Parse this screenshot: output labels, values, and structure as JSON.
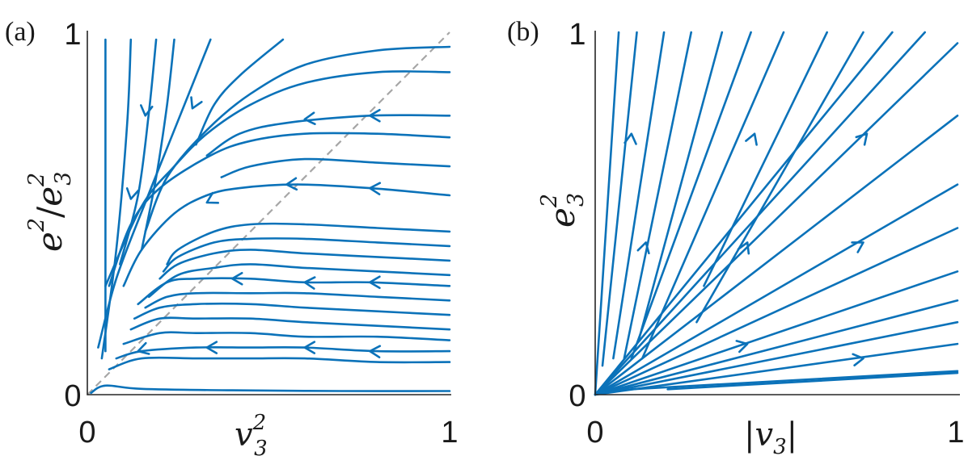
{
  "chart_data": [
    {
      "type": "line",
      "panel_label": "(a)",
      "xlabel_base": "v",
      "xlabel_sub": "3",
      "xlabel_sup": "2",
      "ylabel_num_base": "e",
      "ylabel_num_sup": "2",
      "ylabel_sep": "/",
      "ylabel_den_base": "e",
      "ylabel_den_sub": "3",
      "ylabel_den_sup": "2",
      "xlim": [
        0,
        1
      ],
      "ylim": [
        0,
        1
      ],
      "xticks": [
        "0",
        "1"
      ],
      "yticks": [
        "0",
        "1"
      ],
      "diagonal": {
        "style": "dashed",
        "color": "#a6a6a6",
        "x": [
          0,
          1
        ],
        "y": [
          0,
          1
        ]
      },
      "series": [
        {
          "x": [
            0.05,
            0.05,
            0.05
          ],
          "y": [
            0.98,
            0.55,
            0.12
          ]
        },
        {
          "x": [
            0.12,
            0.11,
            0.08,
            0.04
          ],
          "y": [
            0.98,
            0.75,
            0.4,
            0.1
          ]
        },
        {
          "x": [
            0.19,
            0.17,
            0.14,
            0.09
          ],
          "y": [
            0.98,
            0.78,
            0.55,
            0.36
          ],
          "arrows": [
            {
              "x": 0.16,
              "y": 0.77
            }
          ]
        },
        {
          "x": [
            0.24,
            0.22,
            0.19,
            0.15
          ],
          "y": [
            0.98,
            0.8,
            0.6,
            0.4
          ],
          "arrows": [
            {
              "x": 0.12,
              "y": 0.54
            }
          ]
        },
        {
          "x": [
            0.34,
            0.3,
            0.24,
            0.16,
            0.08,
            0.03
          ],
          "y": [
            0.98,
            0.88,
            0.73,
            0.53,
            0.32,
            0.13
          ]
        },
        {
          "x": [
            0.54,
            0.42,
            0.35,
            0.3
          ],
          "y": [
            0.98,
            0.88,
            0.8,
            0.69
          ],
          "arrows": [
            {
              "x": 0.29,
              "y": 0.79
            }
          ]
        },
        {
          "x": [
            1.0,
            0.8,
            0.6,
            0.45,
            0.33,
            0.22,
            0.16
          ],
          "y": [
            0.96,
            0.95,
            0.91,
            0.83,
            0.73,
            0.6,
            0.45
          ]
        },
        {
          "x": [
            1.0,
            0.8,
            0.6,
            0.45,
            0.33,
            0.24,
            0.15,
            0.05
          ],
          "y": [
            0.89,
            0.89,
            0.86,
            0.8,
            0.72,
            0.63,
            0.52,
            0.3
          ]
        },
        {
          "x": [
            1.0,
            0.78,
            0.55,
            0.42,
            0.33
          ],
          "y": [
            0.77,
            0.77,
            0.75,
            0.72,
            0.66
          ],
          "arrows": [
            {
              "x": 0.78,
              "y": 0.77
            },
            {
              "x": 0.6,
              "y": 0.76
            }
          ]
        },
        {
          "x": [
            1.0,
            0.8,
            0.6,
            0.45,
            0.34,
            0.2,
            0.12,
            0.06
          ],
          "y": [
            0.71,
            0.72,
            0.72,
            0.7,
            0.66,
            0.57,
            0.47,
            0.3
          ]
        },
        {
          "x": [
            1.0,
            0.8,
            0.6,
            0.45,
            0.37
          ],
          "y": [
            0.63,
            0.64,
            0.65,
            0.63,
            0.6
          ]
        },
        {
          "x": [
            1.0,
            0.78,
            0.58,
            0.42,
            0.33,
            0.24,
            0.15,
            0.1
          ],
          "y": [
            0.55,
            0.57,
            0.58,
            0.57,
            0.55,
            0.5,
            0.4,
            0.3
          ],
          "arrows": [
            {
              "x": 0.78,
              "y": 0.57
            },
            {
              "x": 0.55,
              "y": 0.58
            },
            {
              "x": 0.33,
              "y": 0.53
            }
          ]
        },
        {
          "x": [
            1.0,
            0.8,
            0.6,
            0.45,
            0.35,
            0.25,
            0.22
          ],
          "y": [
            0.45,
            0.46,
            0.47,
            0.47,
            0.45,
            0.4,
            0.36
          ]
        },
        {
          "x": [
            1.0,
            0.8,
            0.6,
            0.45,
            0.35,
            0.25,
            0.21
          ],
          "y": [
            0.41,
            0.42,
            0.43,
            0.43,
            0.42,
            0.38,
            0.34
          ]
        },
        {
          "x": [
            1.0,
            0.8,
            0.6,
            0.45,
            0.35,
            0.25,
            0.2
          ],
          "y": [
            0.37,
            0.38,
            0.39,
            0.4,
            0.39,
            0.36,
            0.32
          ]
        },
        {
          "x": [
            1.0,
            0.8,
            0.6,
            0.45,
            0.35,
            0.25,
            0.17
          ],
          "y": [
            0.33,
            0.34,
            0.35,
            0.36,
            0.35,
            0.33,
            0.27
          ]
        },
        {
          "x": [
            1.0,
            0.78,
            0.6,
            0.45,
            0.3,
            0.22,
            0.14
          ],
          "y": [
            0.3,
            0.31,
            0.31,
            0.32,
            0.32,
            0.31,
            0.25
          ],
          "arrows": [
            {
              "x": 0.78,
              "y": 0.31
            },
            {
              "x": 0.6,
              "y": 0.31
            },
            {
              "x": 0.4,
              "y": 0.32
            }
          ]
        },
        {
          "x": [
            1.0,
            0.8,
            0.6,
            0.45,
            0.3,
            0.22,
            0.16
          ],
          "y": [
            0.26,
            0.27,
            0.28,
            0.28,
            0.28,
            0.27,
            0.24
          ]
        },
        {
          "x": [
            1.0,
            0.8,
            0.6,
            0.45,
            0.3,
            0.2,
            0.13
          ],
          "y": [
            0.22,
            0.23,
            0.24,
            0.25,
            0.25,
            0.24,
            0.21
          ]
        },
        {
          "x": [
            1.0,
            0.8,
            0.6,
            0.45,
            0.3,
            0.2,
            0.12
          ],
          "y": [
            0.18,
            0.19,
            0.2,
            0.21,
            0.21,
            0.21,
            0.18
          ]
        },
        {
          "x": [
            1.0,
            0.8,
            0.6,
            0.45,
            0.3,
            0.2,
            0.1
          ],
          "y": [
            0.15,
            0.16,
            0.16,
            0.17,
            0.17,
            0.17,
            0.14
          ]
        },
        {
          "x": [
            1.0,
            0.8,
            0.6,
            0.45,
            0.3,
            0.15,
            0.08
          ],
          "y": [
            0.12,
            0.12,
            0.13,
            0.13,
            0.13,
            0.12,
            0.1
          ],
          "arrows": [
            {
              "x": 0.78,
              "y": 0.12
            },
            {
              "x": 0.6,
              "y": 0.13
            },
            {
              "x": 0.33,
              "y": 0.13
            },
            {
              "x": 0.14,
              "y": 0.12
            }
          ]
        },
        {
          "x": [
            1.0,
            0.8,
            0.6,
            0.45,
            0.3,
            0.15,
            0.06
          ],
          "y": [
            0.09,
            0.09,
            0.1,
            0.1,
            0.1,
            0.1,
            0.07
          ]
        },
        {
          "x": [
            1.0,
            0.7,
            0.4,
            0.15,
            0.05,
            0.01
          ],
          "y": [
            0.01,
            0.01,
            0.012,
            0.016,
            0.025,
            0.005
          ]
        }
      ]
    },
    {
      "type": "line",
      "panel_label": "(b)",
      "xlabel_open": "|",
      "xlabel_base": "v",
      "xlabel_sub": "3",
      "xlabel_close": "|",
      "ylabel_base": "e",
      "ylabel_sub": "3",
      "ylabel_sup": "2",
      "xlim": [
        0,
        1
      ],
      "ylim": [
        0,
        1
      ],
      "xticks": [
        "0",
        "1"
      ],
      "yticks": [
        "0",
        "1"
      ],
      "series": [
        {
          "x": [
            0.0,
            0.065
          ],
          "y": [
            0.0,
            1.0
          ]
        },
        {
          "x": [
            0.02,
            0.115
          ],
          "y": [
            0.08,
            1.0
          ],
          "arrows": [
            {
              "x": 0.1,
              "y": 0.72
            }
          ]
        },
        {
          "x": [
            0.05,
            0.19
          ],
          "y": [
            0.1,
            1.0
          ]
        },
        {
          "x": [
            0.08,
            0.265
          ],
          "y": [
            0.1,
            1.0
          ]
        },
        {
          "x": [
            0.12,
            0.35
          ],
          "y": [
            0.15,
            1.0
          ],
          "arrows": [
            {
              "x": 0.14,
              "y": 0.42
            }
          ]
        },
        {
          "x": [
            0.1,
            0.43
          ],
          "y": [
            0.1,
            1.0
          ],
          "arrows": [
            {
              "x": 0.44,
              "y": 0.72
            }
          ]
        },
        {
          "x": [
            0.13,
            0.52
          ],
          "y": [
            0.1,
            1.0
          ],
          "arrows": [
            {
              "x": 0.42,
              "y": 0.42
            }
          ]
        },
        {
          "x": [
            0.3,
            0.64
          ],
          "y": [
            0.3,
            1.0
          ]
        },
        {
          "x": [
            0.28,
            0.74
          ],
          "y": [
            0.2,
            1.0
          ]
        },
        {
          "x": [
            0.0,
            0.82
          ],
          "y": [
            0.0,
            1.0
          ]
        },
        {
          "x": [
            0.0,
            0.91
          ],
          "y": [
            0.0,
            1.0
          ],
          "arrows": [
            {
              "x": 0.75,
              "y": 0.72
            }
          ]
        },
        {
          "x": [
            0.0,
            1.0
          ],
          "y": [
            0.0,
            0.97
          ]
        },
        {
          "x": [
            0.0,
            1.0
          ],
          "y": [
            0.0,
            0.77
          ]
        },
        {
          "x": [
            0.0,
            1.0
          ],
          "y": [
            0.0,
            0.58
          ],
          "arrows": [
            {
              "x": 0.74,
              "y": 0.42
            }
          ]
        },
        {
          "x": [
            0.0,
            1.0
          ],
          "y": [
            0.0,
            0.46
          ]
        },
        {
          "x": [
            0.0,
            1.0
          ],
          "y": [
            0.0,
            0.34
          ]
        },
        {
          "x": [
            0.0,
            1.0
          ],
          "y": [
            0.0,
            0.26
          ],
          "arrows": [
            {
              "x": 0.42,
              "y": 0.14
            }
          ]
        },
        {
          "x": [
            0.0,
            1.0
          ],
          "y": [
            0.0,
            0.2
          ]
        },
        {
          "x": [
            0.0,
            1.0
          ],
          "y": [
            0.0,
            0.14
          ],
          "arrows": [
            {
              "x": 0.74,
              "y": 0.1
            }
          ]
        },
        {
          "x": [
            0.1,
            1.0
          ],
          "y": [
            0.015,
            0.065
          ]
        },
        {
          "x": [
            0.2,
            1.0
          ],
          "y": [
            0.015,
            0.06
          ]
        }
      ]
    }
  ]
}
